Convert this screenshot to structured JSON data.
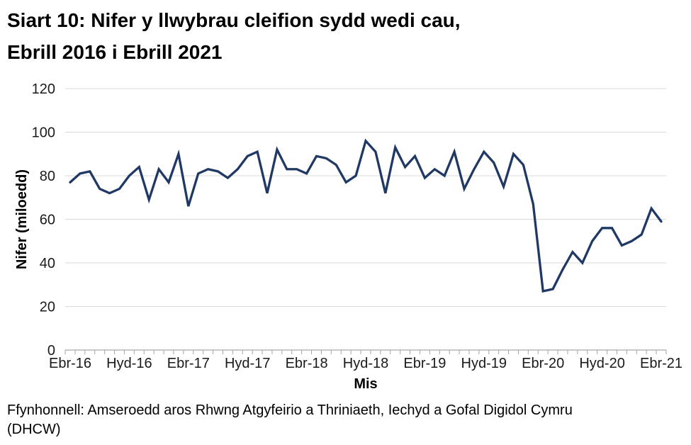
{
  "title_lines": [
    "Siart 10: Nifer y llwybrau cleifion sydd wedi cau,",
    "Ebrill 2016 i Ebrill 2021"
  ],
  "footer_lines": [
    "Ffynhonnell: Amseroedd aros Rhwng Atgyfeirio a Thriniaeth, Iechyd a Gofal Digidol Cymru",
    "(DHCW)"
  ],
  "chart_data": {
    "type": "line",
    "title": "Siart 10: Nifer y llwybrau cleifion sydd wedi cau, Ebrill 2016 i Ebrill 2021",
    "xlabel": "Mis",
    "ylabel": "Nifer (miloedd)",
    "ylim": [
      0,
      120
    ],
    "y_ticks": [
      0,
      20,
      40,
      60,
      80,
      100,
      120
    ],
    "grid": true,
    "legend": false,
    "x": [
      "Ebr-16",
      "Mai-16",
      "Meh-16",
      "Gor-16",
      "Aws-16",
      "Medi-16",
      "Hyd-16",
      "Tach-16",
      "Rhag-16",
      "Ion-17",
      "Chw-17",
      "Maw-17",
      "Ebr-17",
      "Mai-17",
      "Meh-17",
      "Gor-17",
      "Aws-17",
      "Medi-17",
      "Hyd-17",
      "Tach-17",
      "Rhag-17",
      "Ion-18",
      "Chw-18",
      "Maw-18",
      "Ebr-18",
      "Mai-18",
      "Meh-18",
      "Gor-18",
      "Aws-18",
      "Medi-18",
      "Hyd-18",
      "Tach-18",
      "Rhag-18",
      "Ion-19",
      "Chw-19",
      "Maw-19",
      "Ebr-19",
      "Mai-19",
      "Meh-19",
      "Gor-19",
      "Aws-19",
      "Medi-19",
      "Hyd-19",
      "Tach-19",
      "Rhag-19",
      "Ion-20",
      "Chw-20",
      "Maw-20",
      "Ebr-20",
      "Mai-20",
      "Meh-20",
      "Gor-20",
      "Aws-20",
      "Medi-20",
      "Hyd-20",
      "Tach-20",
      "Rhag-20",
      "Ion-21",
      "Chw-21",
      "Maw-21",
      "Ebr-21"
    ],
    "x_axis_tick_labels": [
      "Ebr-16",
      "Hyd-16",
      "Ebr-17",
      "Hyd-17",
      "Ebr-18",
      "Hyd-18",
      "Ebr-19",
      "Hyd-19",
      "Ebr-20",
      "Hyd-20",
      "Ebr-21"
    ],
    "x_axis_tick_indices": [
      0,
      6,
      12,
      18,
      24,
      30,
      36,
      42,
      48,
      54,
      60
    ],
    "series": [
      {
        "name": "Nifer y llwybrau cleifion sydd wedi cau",
        "values": [
          77,
          81,
          82,
          74,
          72,
          74,
          80,
          84,
          69,
          83,
          77,
          90,
          66,
          81,
          83,
          82,
          79,
          83,
          89,
          91,
          72,
          92,
          83,
          83,
          81,
          89,
          88,
          85,
          77,
          80,
          96,
          91,
          72,
          93,
          84,
          89,
          79,
          83,
          80,
          91,
          74,
          83,
          91,
          86,
          75,
          90,
          85,
          67,
          27,
          28,
          37,
          45,
          40,
          50,
          56,
          56,
          48,
          50,
          53,
          65,
          59
        ]
      }
    ],
    "line_color": "#1F3864",
    "gridline_color": "#D9D9D9",
    "axis_color": "#A6A6A6",
    "tick_label_color": "#1A1A1A"
  }
}
